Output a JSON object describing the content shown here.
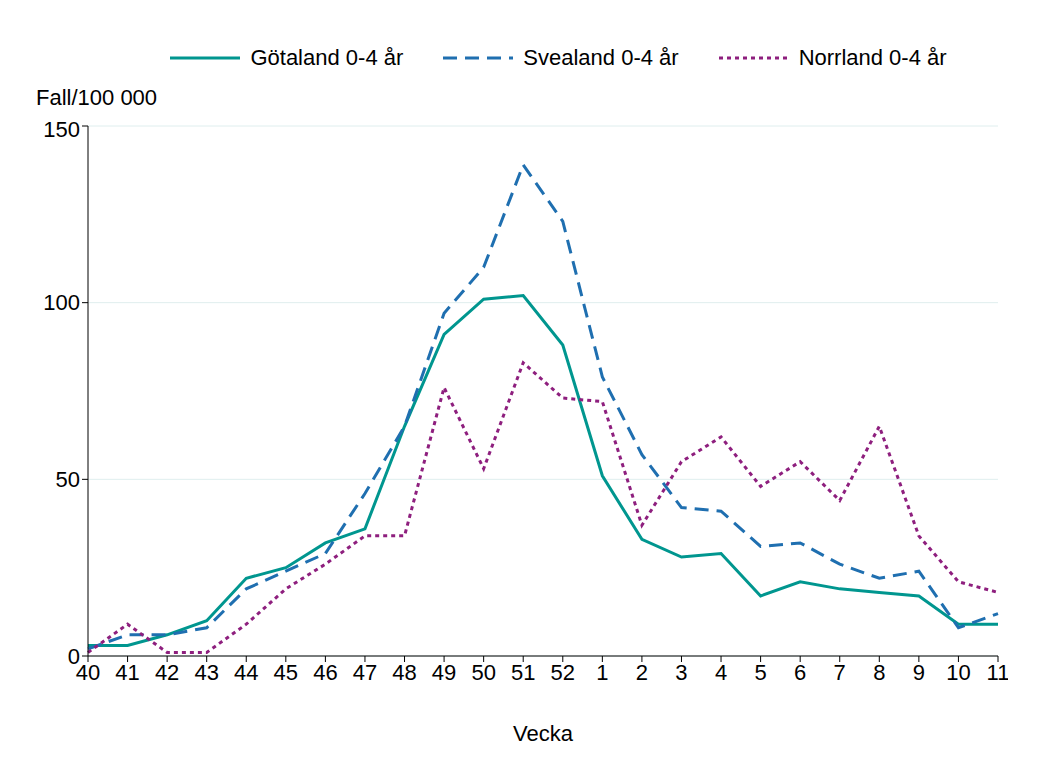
{
  "chart_data": {
    "type": "line",
    "y_label": "Fall/100 000",
    "x_label": "Vecka",
    "categories": [
      "40",
      "41",
      "42",
      "43",
      "44",
      "45",
      "46",
      "47",
      "48",
      "49",
      "50",
      "51",
      "52",
      "1",
      "2",
      "3",
      "4",
      "5",
      "6",
      "7",
      "8",
      "9",
      "10",
      "11"
    ],
    "series": [
      {
        "name": "Götaland 0-4 år",
        "color": "#00968f",
        "line_style": "solid",
        "values": [
          3,
          3,
          6,
          10,
          22,
          25,
          32,
          36,
          65,
          91,
          101,
          102,
          88,
          51,
          33,
          28,
          29,
          17,
          21,
          19,
          18,
          17,
          9,
          9
        ]
      },
      {
        "name": "Svealand 0-4 år",
        "color": "#1f6fb0",
        "line_style": "dashed",
        "values": [
          2,
          6,
          6,
          8,
          19,
          24,
          29,
          46,
          65,
          97,
          110,
          139,
          123,
          79,
          57,
          42,
          41,
          31,
          32,
          26,
          22,
          24,
          8,
          12
        ]
      },
      {
        "name": "Norrland 0-4 år",
        "color": "#8e1f7e",
        "line_style": "dotted",
        "values": [
          1,
          9,
          1,
          1,
          9,
          19,
          26,
          34,
          34,
          76,
          53,
          83,
          73,
          72,
          37,
          55,
          62,
          48,
          55,
          44,
          65,
          34,
          21,
          18
        ]
      }
    ],
    "ylim": [
      0,
      150
    ],
    "yticks": [
      0,
      50,
      100,
      150
    ],
    "grid": true,
    "legend": "top"
  }
}
